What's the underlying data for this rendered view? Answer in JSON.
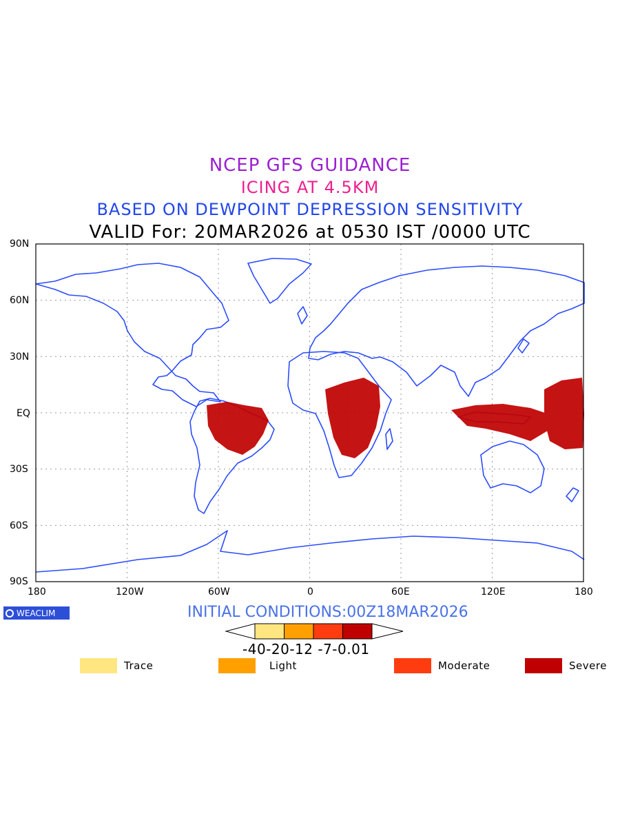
{
  "titles": {
    "line1": "NCEP GFS GUIDANCE",
    "line2": "ICING AT 4.5KM",
    "line3": "BASED ON DEWPOINT DEPRESSION SENSITIVITY",
    "line4": "VALID For: 20MAR2026 at 0530 IST /0000 UTC"
  },
  "title_colors": {
    "line1": "#9b1fd1",
    "line2": "#ef1f8f",
    "line3": "#2346e8",
    "line4": "#000000"
  },
  "colors": {
    "coast": "#2a4bff",
    "frame": "#000000",
    "grid": "#9a9a9a",
    "blue_text": "#4a72e8",
    "logo_bg": "#2d4fd8"
  },
  "lat_labels": [
    "90N",
    "60N",
    "30N",
    "EQ",
    "30S",
    "60S",
    "90S"
  ],
  "lon_labels": [
    "180",
    "120W",
    "60W",
    "0",
    "60E",
    "120E",
    "180"
  ],
  "logo": {
    "icon": "copyright-circle-icon",
    "text": "WEACLIM"
  },
  "initial_conditions": "INITIAL CONDITIONS:00Z18MAR2026",
  "colorbar": {
    "ticks": "-40-20-12 -7-0.01",
    "colors": [
      "#ffe680",
      "#ffa000",
      "#ff3c10",
      "#c00000"
    ]
  },
  "legend": [
    {
      "label": "Trace",
      "color": "#ffe680"
    },
    {
      "label": "Light",
      "color": "#ffa000"
    },
    {
      "label": "Moderate",
      "color": "#ff3c10"
    },
    {
      "label": "Severe",
      "color": "#c00000"
    }
  ],
  "icing_regions": [
    {
      "name": "south-america",
      "color": "#c00000"
    },
    {
      "name": "central-africa",
      "color": "#c00000"
    },
    {
      "name": "maritime-continent",
      "color": "#c00000"
    },
    {
      "name": "west-pacific",
      "color": "#c00000"
    }
  ]
}
